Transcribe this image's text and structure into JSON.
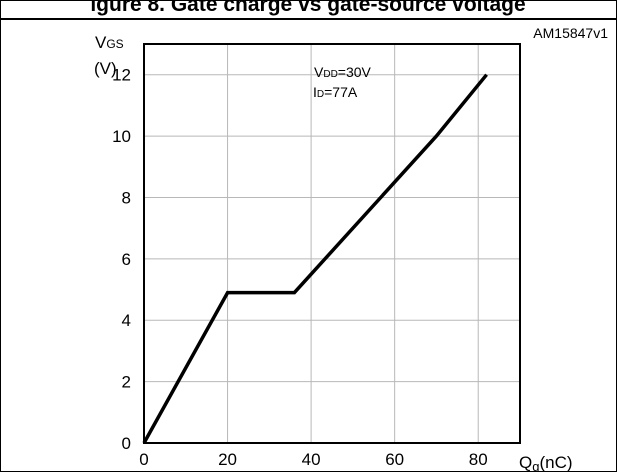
{
  "figure": {
    "title_fragment": "igure 8. Gate charge vs gate-source voltage",
    "figure_id": "AM15847v1"
  },
  "chart_data": {
    "type": "line",
    "ylabel_main": "V",
    "ylabel_sub": "GS",
    "ylabel_unit": "(V)",
    "xlabel_main": "Q",
    "xlabel_sub": "g",
    "xlabel_unit": "(nC)",
    "xlim": [
      0,
      90
    ],
    "ylim": [
      0,
      13
    ],
    "xticks": [
      0,
      20,
      40,
      60,
      80
    ],
    "yticks": [
      0,
      2,
      4,
      6,
      8,
      10,
      12
    ],
    "grid": true,
    "annotations": [
      {
        "main": "V",
        "sub": "DD",
        "value": "=30V"
      },
      {
        "main": "I",
        "sub": "D",
        "value": "=77A"
      }
    ],
    "series": [
      {
        "x": [
          0,
          20,
          36,
          70,
          82
        ],
        "y": [
          0,
          4.9,
          4.9,
          10,
          12
        ]
      }
    ]
  }
}
